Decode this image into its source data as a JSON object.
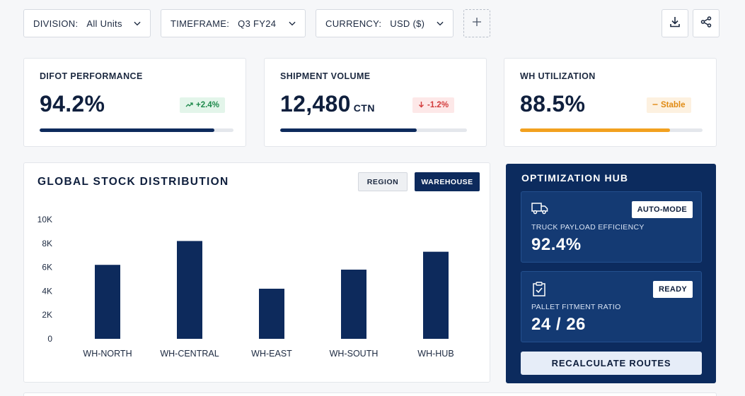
{
  "filters": {
    "division": {
      "label": "DIVISION:",
      "value": "All Units"
    },
    "timeframe": {
      "label": "TIMEFRAME:",
      "value": "Q3 FY24"
    },
    "currency": {
      "label": "CURRENCY:",
      "value": "USD ($)"
    }
  },
  "toolbar": {
    "add_icon": "plus-icon",
    "download_icon": "download-icon",
    "share_icon": "share-icon"
  },
  "kpis": [
    {
      "title": "DIFOT PERFORMANCE",
      "value": "94.2%",
      "unit": "",
      "badge": "+2.4%",
      "badge_icon": "trend-up-icon",
      "trend": "up",
      "progress": 0.9
    },
    {
      "title": "SHIPMENT VOLUME",
      "value": "12,480",
      "unit": "CTN",
      "badge": "-1.2%",
      "badge_icon": "arrow-down-icon",
      "trend": "down",
      "progress": 0.73
    },
    {
      "title": "WH UTILIZATION",
      "value": "88.5%",
      "unit": "",
      "badge": "Stable",
      "badge_icon": "dash-icon",
      "trend": "neutral",
      "progress": 0.82
    }
  ],
  "chart": {
    "title": "GLOBAL STOCK DISTRIBUTION",
    "toggle_region": "REGION",
    "toggle_warehouse": "WAREHOUSE",
    "active_toggle": "WAREHOUSE"
  },
  "chart_data": {
    "type": "bar",
    "categories": [
      "WH-NORTH",
      "WH-CENTRAL",
      "WH-EAST",
      "WH-SOUTH",
      "WH-HUB"
    ],
    "values": [
      6200,
      8200,
      4200,
      5800,
      7300
    ],
    "ylim": [
      0,
      10000
    ],
    "yticks": [
      0,
      2000,
      4000,
      6000,
      8000,
      10000
    ],
    "ytick_labels": [
      "0",
      "2K",
      "4K",
      "6K",
      "8K",
      "10K"
    ],
    "title": "GLOBAL STOCK DISTRIBUTION",
    "xlabel": "",
    "ylabel": "",
    "grid": false,
    "bar_color": "#0d2a5c"
  },
  "hub": {
    "title": "OPTIMIZATION HUB",
    "panels": [
      {
        "icon": "truck-icon",
        "badge": "AUTO-MODE",
        "label": "TRUCK PAYLOAD EFFICIENCY",
        "value": "92.4%"
      },
      {
        "icon": "clipboard-check-icon",
        "badge": "READY",
        "label": "PALLET FITMENT RATIO",
        "value": "24 / 26"
      }
    ],
    "button": "RECALCULATE ROUTES"
  },
  "colors": {
    "navy": "#0d2a5c",
    "hub_bg": "#0c2b5e",
    "orange": "#f2a11f",
    "green": "#1f8a4c",
    "red": "#d23b3b"
  }
}
